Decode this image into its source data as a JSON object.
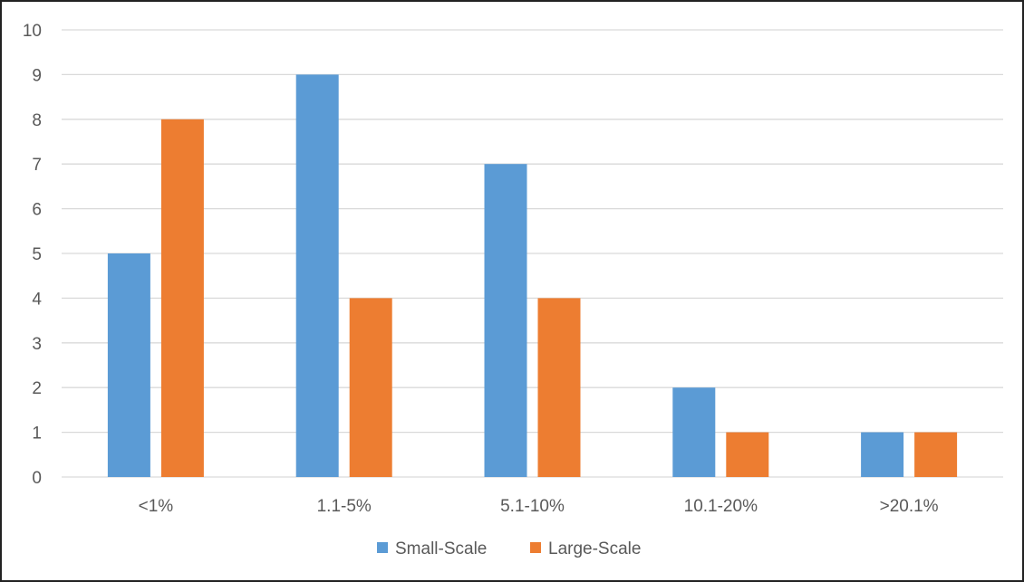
{
  "chart_data": {
    "type": "bar",
    "categories": [
      "<1%",
      "1.1-5%",
      "5.1-10%",
      "10.1-20%",
      ">20.1%"
    ],
    "series": [
      {
        "name": "Small-Scale",
        "values": [
          5,
          9,
          7,
          2,
          1
        ],
        "color": "#5B9BD5"
      },
      {
        "name": "Large-Scale",
        "values": [
          8,
          4,
          4,
          1,
          1
        ],
        "color": "#ED7D31"
      }
    ],
    "ylim": [
      0,
      10
    ],
    "yticks": [
      0,
      1,
      2,
      3,
      4,
      5,
      6,
      7,
      8,
      9,
      10
    ],
    "title": "",
    "xlabel": "",
    "ylabel": "",
    "grid": true,
    "gridline_color": "#D9D9D9",
    "legend_position": "bottom"
  }
}
